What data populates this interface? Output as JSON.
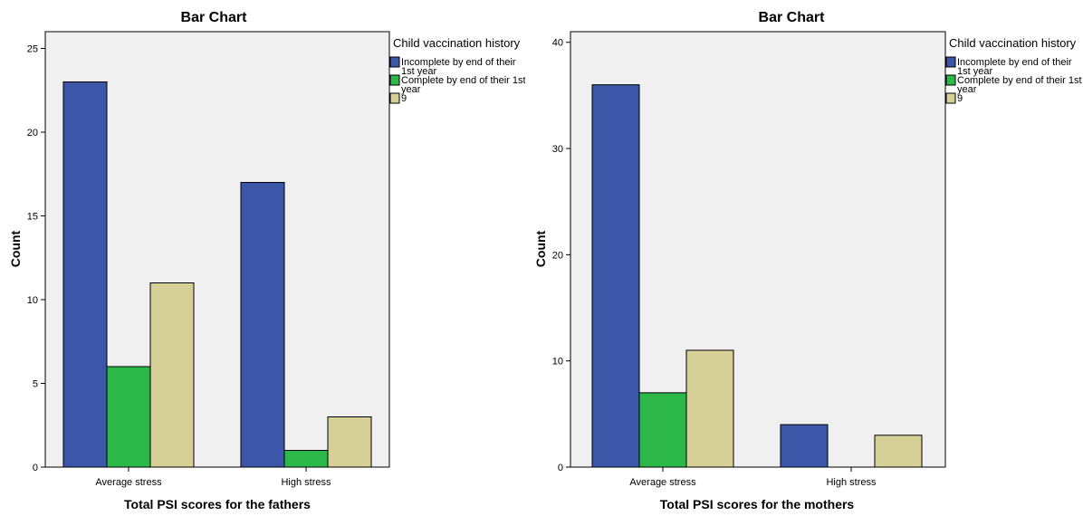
{
  "chart_data": [
    {
      "type": "bar",
      "title": "Bar Chart",
      "xlabel": "Total PSI scores for the fathers",
      "ylabel": "Count",
      "ylim": [
        0,
        26
      ],
      "yticks": [
        0,
        5,
        10,
        15,
        20,
        25
      ],
      "grid": false,
      "legend_placement": "right",
      "legend_title": "Child vaccination history",
      "categories": [
        "Average stress",
        "High stress"
      ],
      "series": [
        {
          "name": "Incomplete by end of their 1st year",
          "legend_lines": [
            "Incomplete by end of their",
            "1st year"
          ],
          "color": "#3c56a8",
          "values": [
            23,
            17
          ]
        },
        {
          "name": "Complete by end of their 1st year",
          "legend_lines": [
            "Complete by end of their 1st",
            "year"
          ],
          "color": "#2db84a",
          "values": [
            6,
            1
          ]
        },
        {
          "name": "9",
          "legend_lines": [
            "9"
          ],
          "color": "#d6cf96",
          "values": [
            11,
            3
          ]
        }
      ]
    },
    {
      "type": "bar",
      "title": "Bar Chart",
      "xlabel": "Total PSI scores for the mothers",
      "ylabel": "Count",
      "ylim": [
        0,
        41
      ],
      "yticks": [
        0,
        10,
        20,
        30,
        40
      ],
      "grid": false,
      "legend_placement": "right",
      "legend_title": "Child vaccination history",
      "categories": [
        "Average stress",
        "High stress"
      ],
      "series": [
        {
          "name": "Incomplete by end of their 1st year",
          "legend_lines": [
            "Incomplete by end of their",
            "1st year"
          ],
          "color": "#3c56a8",
          "values": [
            36,
            4
          ]
        },
        {
          "name": "Complete by end of their 1st year",
          "legend_lines": [
            "Complete by end of their 1st",
            "year"
          ],
          "color": "#2db84a",
          "values": [
            7,
            0
          ]
        },
        {
          "name": "9",
          "legend_lines": [
            "9"
          ],
          "color": "#d6cf96",
          "values": [
            11,
            3
          ]
        }
      ]
    }
  ]
}
